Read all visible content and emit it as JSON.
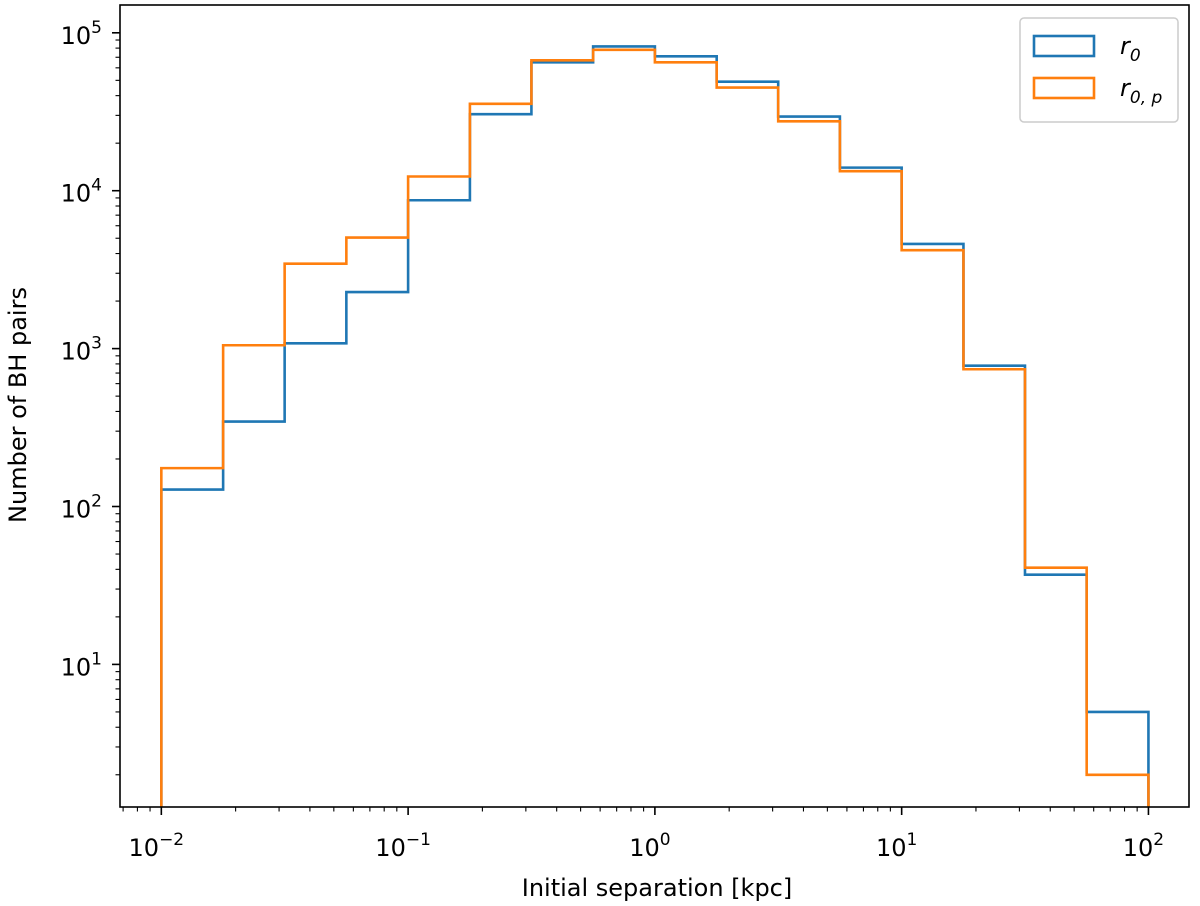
{
  "chart_data": {
    "type": "histogram-step",
    "title": "",
    "xlabel": "Initial separation [kpc]",
    "ylabel": "Number of BH pairs",
    "xscale": "log",
    "yscale": "log",
    "xlim": [
      0.0068,
      146
    ],
    "ylim": [
      1.25,
      150000
    ],
    "grid": false,
    "legend_position": "top-right",
    "x_ticks": [
      {
        "value": 0.01,
        "base": "10",
        "exp": "−2"
      },
      {
        "value": 0.1,
        "base": "10",
        "exp": "−1"
      },
      {
        "value": 1,
        "base": "10",
        "exp": "0"
      },
      {
        "value": 10,
        "base": "10",
        "exp": "1"
      },
      {
        "value": 100,
        "base": "10",
        "exp": "2"
      }
    ],
    "y_ticks": [
      {
        "value": 10,
        "base": "10",
        "exp": "1"
      },
      {
        "value": 100,
        "base": "10",
        "exp": "2"
      },
      {
        "value": 1000,
        "base": "10",
        "exp": "3"
      },
      {
        "value": 10000,
        "base": "10",
        "exp": "4"
      },
      {
        "value": 100000,
        "base": "10",
        "exp": "5"
      }
    ],
    "bin_edges": [
      0.01,
      0.0178,
      0.0316,
      0.0562,
      0.1,
      0.178,
      0.316,
      0.562,
      1.0,
      1.78,
      3.16,
      5.62,
      10.0,
      17.8,
      31.6,
      56.2,
      100.0
    ],
    "series": [
      {
        "legend_base": "r",
        "legend_sub": "0",
        "color": "#1f77b4",
        "counts": [
          128,
          345,
          1080,
          2280,
          8700,
          30500,
          65000,
          82000,
          71000,
          49000,
          29500,
          14000,
          4600,
          780,
          37,
          5
        ]
      },
      {
        "legend_base": "r",
        "legend_sub": "0, p",
        "color": "#ff7f0e",
        "counts": [
          175,
          1050,
          3450,
          5050,
          12300,
          35500,
          67000,
          78000,
          65000,
          45000,
          27500,
          13300,
          4200,
          740,
          41,
          2
        ]
      }
    ]
  }
}
